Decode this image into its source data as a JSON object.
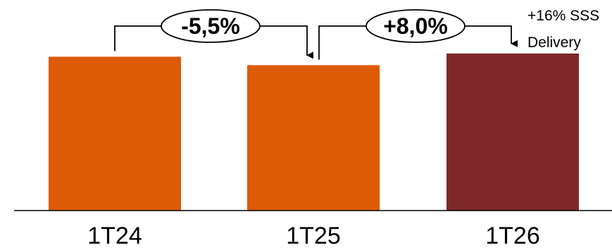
{
  "chart_data": {
    "type": "bar",
    "categories": [
      "1T24",
      "1T25",
      "1T26"
    ],
    "values": [
      100,
      94.5,
      102.06
    ],
    "colors": [
      "#dd5b06",
      "#dd5b06",
      "#7e2829"
    ],
    "ylim": [
      0,
      102.06
    ],
    "grid": false,
    "annotations": [
      {
        "from": "1T24",
        "to": "1T25",
        "label": "-5,5%"
      },
      {
        "from": "1T25",
        "to": "1T26",
        "label": "+8,0%"
      }
    ],
    "notes": [
      "+16% SSS",
      "Delivery"
    ]
  }
}
